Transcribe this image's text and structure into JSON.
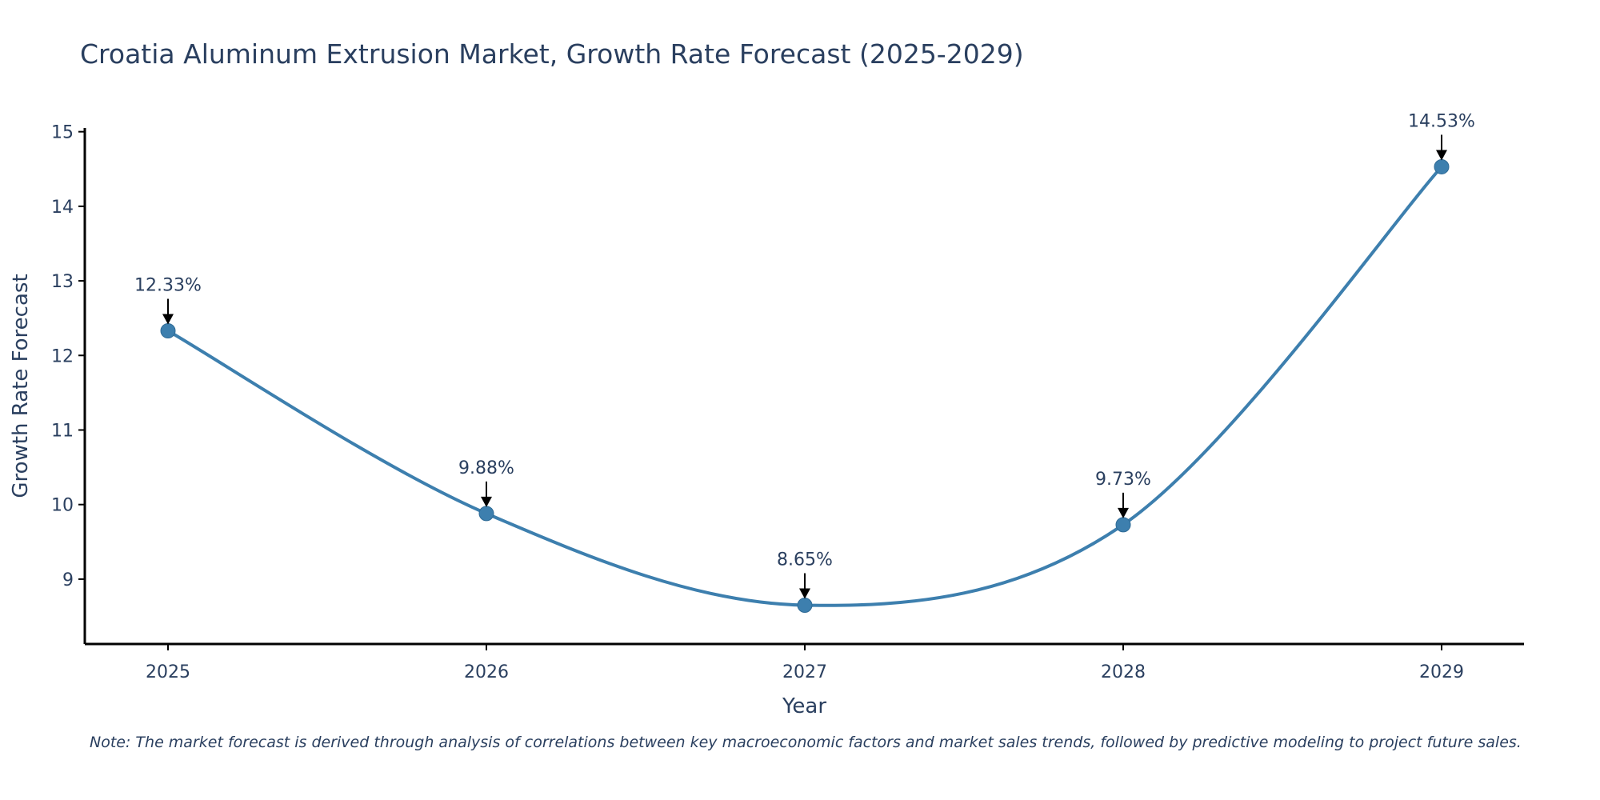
{
  "chart_data": {
    "type": "line",
    "title": "Croatia Aluminum Extrusion Market, Growth Rate Forecast (2025-2029)",
    "xlabel": "Year",
    "ylabel": "Growth Rate Forecast",
    "categories": [
      "2025",
      "2026",
      "2027",
      "2028",
      "2029"
    ],
    "series": [
      {
        "name": "Growth Rate Forecast",
        "values": [
          12.33,
          9.88,
          8.65,
          9.73,
          14.53
        ]
      }
    ],
    "data_labels": [
      "12.33%",
      "9.88%",
      "8.65%",
      "9.73%",
      "14.53%"
    ],
    "y_ticks": [
      9,
      10,
      11,
      12,
      13,
      14,
      15
    ],
    "ylim": [
      8.13,
      15.05
    ],
    "grid": false,
    "line_shape": "spline",
    "colors": {
      "line": "#3d7fae",
      "marker": "#3d7fae",
      "arrow": "#000000",
      "axis": "#000000",
      "text": "#2a3f5f"
    }
  },
  "note": "Note: The market forecast is derived through analysis of correlations between key macroeconomic factors and market sales trends, followed by predictive modeling to project future sales."
}
